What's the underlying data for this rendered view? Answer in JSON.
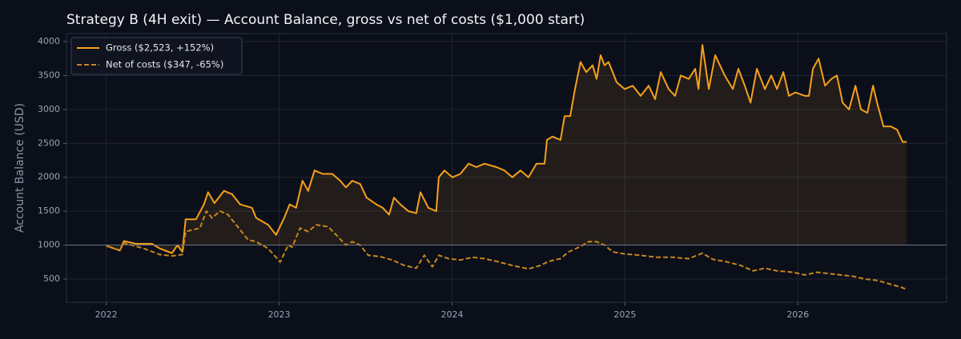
{
  "chart_data": {
    "type": "line",
    "title": "Strategy B (4H exit) — Account Balance, gross vs net of costs ($1,000 start)",
    "y_label": "Account Balance (USD)",
    "xlim": [
      2021.77,
      2026.86
    ],
    "xticks": [
      2022,
      2023,
      2024,
      2025,
      2026
    ],
    "ylim": [
      158,
      4118
    ],
    "yticks": [
      500,
      1000,
      1500,
      2000,
      2500,
      3000,
      3500,
      4000
    ],
    "grid": true,
    "reference_line": 1000,
    "legend": "upper left",
    "series": [
      {
        "name": "Gross ($2,523, +152%)",
        "color": "#f5a01a",
        "dash": false,
        "fill_to_reference": true,
        "x": [
          2022.0,
          2022.079,
          2022.102,
          2022.171,
          2022.264,
          2022.31,
          2022.38,
          2022.412,
          2022.44,
          2022.459,
          2022.519,
          2022.565,
          2022.589,
          2022.626,
          2022.681,
          2022.728,
          2022.774,
          2022.843,
          2022.867,
          2022.936,
          2022.982,
          2023.029,
          2023.061,
          2023.098,
          2023.135,
          2023.168,
          2023.205,
          2023.251,
          2023.307,
          2023.353,
          2023.386,
          2023.423,
          2023.469,
          2023.506,
          2023.562,
          2023.599,
          2023.636,
          2023.664,
          2023.701,
          2023.747,
          2023.793,
          2023.817,
          2023.863,
          2023.909,
          2023.923,
          2023.956,
          2024.002,
          2024.048,
          2024.095,
          2024.141,
          2024.187,
          2024.257,
          2024.303,
          2024.349,
          2024.396,
          2024.442,
          2024.488,
          2024.535,
          2024.549,
          2024.581,
          2024.627,
          2024.651,
          2024.683,
          2024.711,
          2024.743,
          2024.776,
          2024.813,
          2024.836,
          2024.859,
          2024.882,
          2024.905,
          2024.929,
          2024.952,
          2024.998,
          2025.045,
          2025.091,
          2025.137,
          2025.174,
          2025.207,
          2025.253,
          2025.29,
          2025.323,
          2025.369,
          2025.406,
          2025.425,
          2025.448,
          2025.485,
          2025.522,
          2025.577,
          2025.624,
          2025.656,
          2025.693,
          2025.726,
          2025.763,
          2025.809,
          2025.846,
          2025.879,
          2025.916,
          2025.948,
          2025.985,
          2026.041,
          2026.064,
          2026.087,
          2026.12,
          2026.157,
          2026.194,
          2026.226,
          2026.259,
          2026.296,
          2026.333,
          2026.365,
          2026.402,
          2026.435,
          2026.458,
          2026.495,
          2026.537,
          2026.574,
          2026.606,
          2026.629
        ],
        "values": [
          990,
          920,
          1060,
          1020,
          1020,
          950,
          880,
          1000,
          900,
          1380,
          1380,
          1600,
          1780,
          1620,
          1800,
          1750,
          1600,
          1550,
          1400,
          1300,
          1150,
          1400,
          1600,
          1550,
          1950,
          1800,
          2100,
          2050,
          2050,
          1950,
          1850,
          1950,
          1900,
          1700,
          1600,
          1550,
          1450,
          1700,
          1600,
          1500,
          1470,
          1780,
          1550,
          1500,
          2000,
          2100,
          2000,
          2050,
          2200,
          2150,
          2200,
          2150,
          2100,
          2000,
          2100,
          2000,
          2200,
          2200,
          2550,
          2600,
          2550,
          2900,
          2900,
          3300,
          3700,
          3550,
          3650,
          3450,
          3800,
          3650,
          3700,
          3550,
          3400,
          3300,
          3350,
          3200,
          3350,
          3150,
          3550,
          3300,
          3200,
          3500,
          3450,
          3600,
          3300,
          3950,
          3300,
          3800,
          3500,
          3300,
          3600,
          3350,
          3100,
          3600,
          3300,
          3500,
          3300,
          3550,
          3200,
          3250,
          3200,
          3200,
          3600,
          3750,
          3350,
          3450,
          3500,
          3100,
          3000,
          3350,
          3000,
          2950,
          3350,
          3100,
          2750,
          2750,
          2700,
          2520,
          2523
        ]
      },
      {
        "name": "Net of costs ($347, -65%)",
        "color": "#c8861a",
        "dash": true,
        "fill_to_reference": false,
        "x": [
          2022.0,
          2022.079,
          2022.102,
          2022.218,
          2022.31,
          2022.38,
          2022.44,
          2022.459,
          2022.542,
          2022.579,
          2022.612,
          2022.658,
          2022.704,
          2022.751,
          2022.82,
          2022.867,
          2022.936,
          2022.982,
          2023.006,
          2023.052,
          2023.075,
          2023.121,
          2023.168,
          2023.214,
          2023.284,
          2023.33,
          2023.386,
          2023.423,
          2023.469,
          2023.515,
          2023.585,
          2023.654,
          2023.724,
          2023.793,
          2023.84,
          2023.886,
          2023.923,
          2023.979,
          2024.048,
          2024.118,
          2024.187,
          2024.257,
          2024.349,
          2024.442,
          2024.512,
          2024.558,
          2024.627,
          2024.674,
          2024.743,
          2024.79,
          2024.836,
          2024.882,
          2024.929,
          2024.998,
          2025.091,
          2025.184,
          2025.276,
          2025.369,
          2025.448,
          2025.508,
          2025.577,
          2025.67,
          2025.74,
          2025.809,
          2025.879,
          2025.971,
          2026.041,
          2026.11,
          2026.18,
          2026.249,
          2026.319,
          2026.388,
          2026.458,
          2026.527,
          2026.597,
          2026.629
        ],
        "values": [
          990,
          920,
          1030,
          950,
          860,
          840,
          860,
          1200,
          1250,
          1500,
          1400,
          1500,
          1450,
          1300,
          1080,
          1050,
          950,
          820,
          750,
          1000,
          970,
          1250,
          1200,
          1300,
          1270,
          1150,
          1000,
          1050,
          1000,
          850,
          830,
          780,
          700,
          660,
          850,
          680,
          850,
          800,
          780,
          820,
          800,
          760,
          700,
          650,
          700,
          760,
          800,
          900,
          980,
          1050,
          1050,
          1000,
          900,
          870,
          850,
          820,
          820,
          800,
          880,
          790,
          760,
          700,
          620,
          660,
          620,
          600,
          560,
          600,
          580,
          560,
          540,
          500,
          480,
          430,
          380,
          347
        ]
      }
    ]
  }
}
